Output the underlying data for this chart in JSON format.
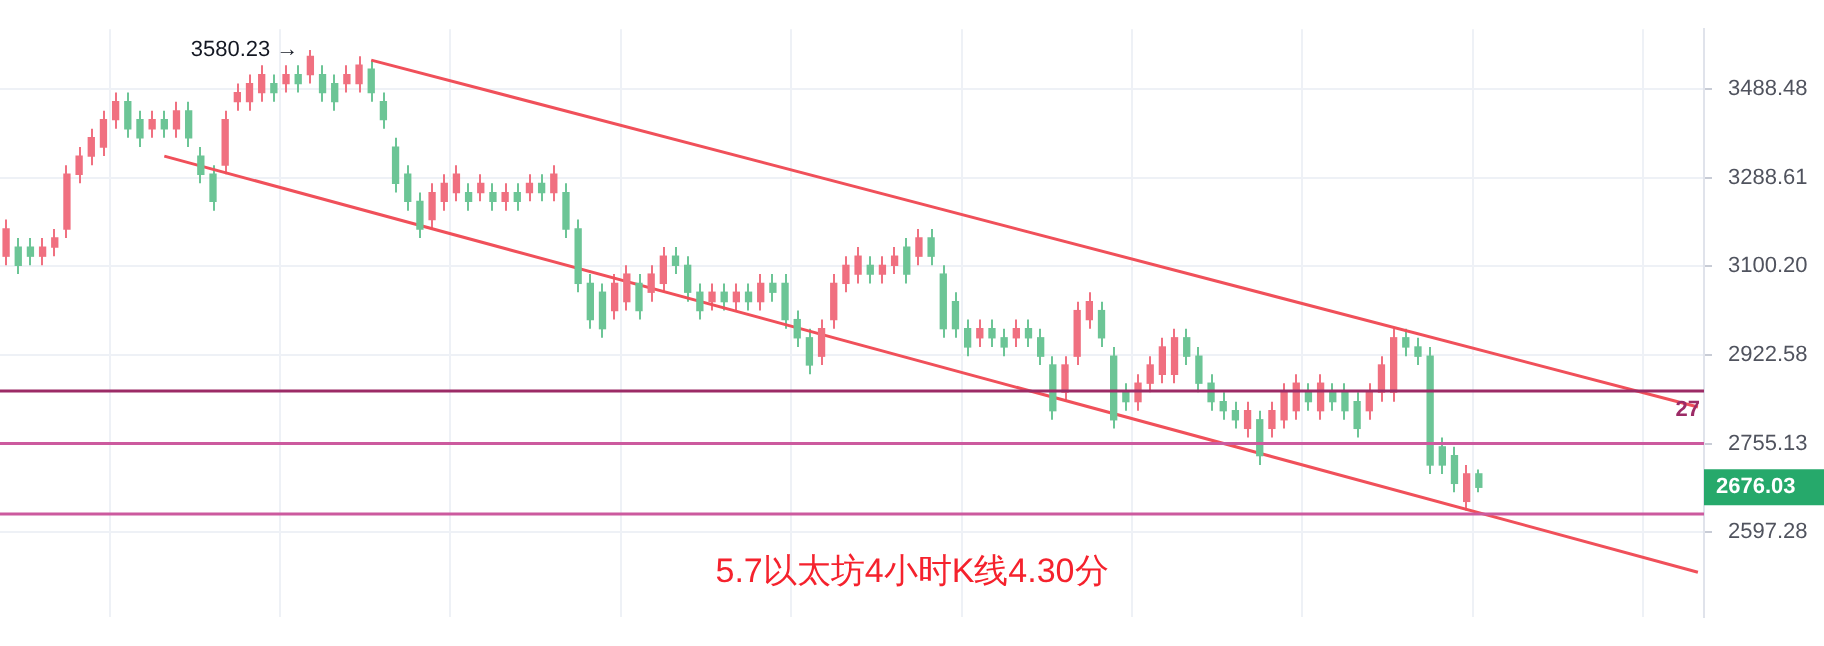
{
  "chart_data": {
    "type": "candlestick",
    "title": "5.7以太坊4小时K线4.30分",
    "categories": [
      null,
      null,
      null,
      null,
      null,
      null,
      null,
      null,
      null,
      null,
      null,
      null,
      null,
      null,
      null,
      null,
      null,
      null,
      null,
      null,
      null,
      null,
      null,
      null,
      null,
      null,
      null,
      null,
      null,
      null,
      null,
      null,
      null,
      null,
      null,
      null,
      null,
      null,
      null,
      null,
      null,
      null,
      null,
      null,
      null,
      null,
      null,
      null,
      null,
      null,
      null,
      null,
      null,
      null,
      null,
      null,
      null,
      null,
      null,
      null,
      null,
      null,
      null,
      null,
      null,
      null,
      null,
      null,
      null,
      null,
      null,
      null,
      null,
      null,
      null,
      null,
      null,
      null,
      null,
      null,
      null,
      null,
      null,
      null,
      null,
      null,
      null,
      null,
      null,
      null,
      null,
      null,
      null,
      null,
      null,
      null,
      null,
      null,
      null,
      null,
      null,
      null,
      null,
      null,
      null,
      null,
      null,
      null,
      null,
      null,
      null,
      null,
      null,
      null,
      null,
      null,
      null,
      null,
      null,
      null,
      null,
      null,
      null,
      null,
      null,
      null,
      null,
      null,
      null,
      null,
      null,
      null,
      null,
      null,
      null,
      null,
      null,
      null,
      null,
      null
    ],
    "ohlc": [
      [
        3121,
        3198,
        3102,
        3178
      ],
      [
        3140,
        3159,
        3084,
        3102
      ],
      [
        3140,
        3159,
        3102,
        3121
      ],
      [
        3121,
        3159,
        3102,
        3140
      ],
      [
        3140,
        3178,
        3121,
        3159
      ],
      [
        3178,
        3316,
        3159,
        3296
      ],
      [
        3296,
        3356,
        3276,
        3336
      ],
      [
        3336,
        3397,
        3316,
        3377
      ],
      [
        3356,
        3438,
        3336,
        3418
      ],
      [
        3418,
        3480,
        3397,
        3459
      ],
      [
        3459,
        3480,
        3377,
        3397
      ],
      [
        3418,
        3438,
        3356,
        3377
      ],
      [
        3397,
        3438,
        3377,
        3418
      ],
      [
        3418,
        3438,
        3377,
        3397
      ],
      [
        3397,
        3459,
        3377,
        3438
      ],
      [
        3438,
        3459,
        3356,
        3377
      ],
      [
        3336,
        3356,
        3276,
        3296
      ],
      [
        3296,
        3316,
        3217,
        3237
      ],
      [
        3316,
        3438,
        3296,
        3418
      ],
      [
        3459,
        3501,
        3438,
        3480
      ],
      [
        3459,
        3522,
        3438,
        3501
      ],
      [
        3480,
        3544,
        3459,
        3522
      ],
      [
        3501,
        3522,
        3459,
        3480
      ],
      [
        3501,
        3544,
        3480,
        3522
      ],
      [
        3522,
        3544,
        3480,
        3501
      ],
      [
        3522,
        3580.23,
        3501,
        3565
      ],
      [
        3522,
        3544,
        3459,
        3480
      ],
      [
        3501,
        3522,
        3438,
        3459
      ],
      [
        3501,
        3544,
        3480,
        3522
      ],
      [
        3501,
        3565,
        3480,
        3544
      ],
      [
        3535,
        3556,
        3459,
        3480
      ],
      [
        3459,
        3480,
        3397,
        3418
      ],
      [
        3356,
        3377,
        3256,
        3276
      ],
      [
        3296,
        3316,
        3217,
        3237
      ],
      [
        3237,
        3256,
        3159,
        3178
      ],
      [
        3198,
        3276,
        3178,
        3256
      ],
      [
        3237,
        3296,
        3217,
        3276
      ],
      [
        3256,
        3316,
        3237,
        3296
      ],
      [
        3256,
        3276,
        3217,
        3237
      ],
      [
        3256,
        3296,
        3237,
        3276
      ],
      [
        3256,
        3276,
        3217,
        3237
      ],
      [
        3237,
        3276,
        3217,
        3256
      ],
      [
        3256,
        3276,
        3217,
        3237
      ],
      [
        3256,
        3296,
        3237,
        3276
      ],
      [
        3276,
        3296,
        3237,
        3256
      ],
      [
        3256,
        3316,
        3237,
        3296
      ],
      [
        3256,
        3276,
        3159,
        3178
      ],
      [
        3178,
        3198,
        3047,
        3065
      ],
      [
        3065,
        3084,
        2974,
        2992
      ],
      [
        3047,
        3065,
        2956,
        2974
      ],
      [
        3010,
        3084,
        2992,
        3065
      ],
      [
        3028,
        3102,
        3010,
        3084
      ],
      [
        3065,
        3084,
        2992,
        3010
      ],
      [
        3047,
        3102,
        3028,
        3084
      ],
      [
        3065,
        3140,
        3047,
        3121
      ],
      [
        3121,
        3140,
        3084,
        3102
      ],
      [
        3102,
        3121,
        3028,
        3047
      ],
      [
        3047,
        3065,
        2992,
        3010
      ],
      [
        3028,
        3065,
        3010,
        3047
      ],
      [
        3047,
        3065,
        3010,
        3028
      ],
      [
        3028,
        3065,
        3010,
        3047
      ],
      [
        3047,
        3065,
        3010,
        3028
      ],
      [
        3028,
        3084,
        3010,
        3065
      ],
      [
        3065,
        3084,
        3028,
        3047
      ],
      [
        3065,
        3084,
        2974,
        2992
      ],
      [
        2992,
        3010,
        2938,
        2956
      ],
      [
        2956,
        2974,
        2885,
        2903
      ],
      [
        2920,
        2992,
        2903,
        2974
      ],
      [
        2992,
        3084,
        2974,
        3065
      ],
      [
        3065,
        3121,
        3047,
        3102
      ],
      [
        3084,
        3140,
        3065,
        3121
      ],
      [
        3102,
        3121,
        3065,
        3084
      ],
      [
        3084,
        3121,
        3065,
        3102
      ],
      [
        3102,
        3140,
        3084,
        3121
      ],
      [
        3140,
        3159,
        3065,
        3084
      ],
      [
        3121,
        3178,
        3102,
        3159
      ],
      [
        3159,
        3178,
        3102,
        3121
      ],
      [
        3084,
        3102,
        2956,
        2974
      ],
      [
        3028,
        3047,
        2956,
        2974
      ],
      [
        2974,
        2992,
        2920,
        2938
      ],
      [
        2956,
        2992,
        2938,
        2974
      ],
      [
        2974,
        2992,
        2938,
        2956
      ],
      [
        2956,
        2974,
        2920,
        2938
      ],
      [
        2956,
        2992,
        2938,
        2974
      ],
      [
        2974,
        2992,
        2938,
        2956
      ],
      [
        2956,
        2974,
        2903,
        2920
      ],
      [
        2903,
        2920,
        2799,
        2816
      ],
      [
        2851,
        2920,
        2833,
        2903
      ],
      [
        2920,
        3028,
        2903,
        3010
      ],
      [
        2992,
        3047,
        2974,
        3028
      ],
      [
        3010,
        3028,
        2938,
        2956
      ],
      [
        2920,
        2938,
        2783,
        2799
      ],
      [
        2851,
        2868,
        2816,
        2833
      ],
      [
        2833,
        2885,
        2816,
        2868
      ],
      [
        2868,
        2920,
        2851,
        2903
      ],
      [
        2885,
        2956,
        2868,
        2938
      ],
      [
        2885,
        2974,
        2868,
        2956
      ],
      [
        2956,
        2974,
        2903,
        2920
      ],
      [
        2920,
        2938,
        2851,
        2868
      ],
      [
        2868,
        2885,
        2816,
        2833
      ],
      [
        2833,
        2851,
        2799,
        2816
      ],
      [
        2816,
        2833,
        2783,
        2799
      ],
      [
        2783,
        2833,
        2766,
        2816
      ],
      [
        2799,
        2816,
        2716,
        2733
      ],
      [
        2783,
        2833,
        2766,
        2816
      ],
      [
        2799,
        2868,
        2783,
        2851
      ],
      [
        2816,
        2885,
        2799,
        2868
      ],
      [
        2851,
        2868,
        2816,
        2833
      ],
      [
        2816,
        2885,
        2799,
        2868
      ],
      [
        2851,
        2868,
        2816,
        2833
      ],
      [
        2851,
        2868,
        2799,
        2816
      ],
      [
        2833,
        2851,
        2766,
        2783
      ],
      [
        2816,
        2868,
        2799,
        2851
      ],
      [
        2851,
        2920,
        2833,
        2903
      ],
      [
        2851,
        2974,
        2833,
        2956
      ],
      [
        2956,
        2974,
        2920,
        2938
      ],
      [
        2938,
        2956,
        2903,
        2920
      ],
      [
        2920,
        2938,
        2700,
        2716
      ],
      [
        2749,
        2766,
        2700,
        2716
      ],
      [
        2733,
        2749,
        2667,
        2683
      ],
      [
        2651,
        2716,
        2635,
        2700
      ],
      [
        2700,
        2708,
        2667,
        2676.03
      ],
      null,
      null,
      null,
      null,
      null,
      null,
      null,
      null,
      null,
      null,
      null,
      null,
      null,
      null,
      null,
      null,
      null,
      null
    ],
    "series": [
      {
        "type": "line",
        "color": "#f0505a",
        "values": [
          null,
          null,
          null,
          null,
          null,
          null,
          null,
          null,
          null,
          null,
          null,
          null,
          null,
          null,
          null,
          null,
          null,
          null,
          null,
          null,
          null,
          null,
          null,
          null,
          null,
          null,
          null,
          null,
          null,
          null,
          3556,
          null,
          null,
          null,
          null,
          null,
          null,
          null,
          null,
          null,
          null,
          null,
          null,
          null,
          null,
          null,
          null,
          null,
          null,
          null,
          null,
          null,
          null,
          null,
          null,
          null,
          null,
          null,
          null,
          null,
          null,
          null,
          null,
          null,
          null,
          null,
          null,
          null,
          null,
          null,
          null,
          null,
          null,
          null,
          null,
          null,
          null,
          null,
          null,
          null,
          null,
          null,
          null,
          null,
          null,
          null,
          null,
          null,
          null,
          null,
          null,
          null,
          null,
          null,
          null,
          null,
          null,
          null,
          null,
          null,
          null,
          null,
          null,
          null,
          null,
          null,
          null,
          null,
          null,
          null,
          null,
          null,
          null,
          null,
          null,
          null,
          null,
          null,
          null,
          null,
          null,
          null,
          null,
          null,
          null,
          null,
          null,
          null,
          null,
          null,
          null,
          null,
          null,
          null,
          null,
          null,
          null,
          null,
          null,
          2823
        ]
      },
      {
        "type": "line",
        "color": "#f0505a",
        "values": [
          null,
          null,
          null,
          null,
          null,
          null,
          null,
          null,
          null,
          null,
          null,
          null,
          null,
          3336,
          null,
          null,
          null,
          null,
          null,
          null,
          null,
          null,
          null,
          null,
          null,
          null,
          null,
          null,
          null,
          null,
          null,
          null,
          null,
          null,
          null,
          null,
          null,
          null,
          null,
          null,
          null,
          null,
          null,
          null,
          null,
          null,
          null,
          null,
          null,
          null,
          null,
          null,
          null,
          null,
          null,
          null,
          null,
          null,
          null,
          null,
          null,
          null,
          null,
          null,
          null,
          null,
          null,
          null,
          null,
          null,
          null,
          null,
          null,
          null,
          null,
          null,
          null,
          null,
          null,
          null,
          null,
          null,
          null,
          null,
          null,
          null,
          null,
          null,
          null,
          null,
          null,
          null,
          null,
          null,
          null,
          null,
          null,
          null,
          null,
          null,
          null,
          null,
          null,
          null,
          null,
          null,
          null,
          null,
          null,
          null,
          null,
          null,
          null,
          null,
          null,
          null,
          null,
          null,
          null,
          null,
          null,
          null,
          null,
          null,
          null,
          null,
          null,
          null,
          null,
          null,
          null,
          null,
          null,
          null,
          null,
          null,
          null,
          null,
          null,
          2529
        ]
      }
    ],
    "ref_lines": [
      {
        "axis": "y",
        "value": 2853,
        "color": "#9c2b66"
      },
      {
        "axis": "y",
        "value": 2755,
        "color": "#cc5a9e"
      },
      {
        "axis": "y",
        "value": 2629,
        "color": "#cc5a9e"
      }
    ],
    "annotations": [
      "3580.23 →",
      "2676.03",
      "27"
    ],
    "log": true,
    "ylim": [
      2455,
      3630
    ],
    "yticks": [
      2597.28,
      2755.13,
      2922.58,
      {
        "value": 3100.2,
        "label": "3100.20"
      },
      3288.61,
      3488.48
    ],
    "grid": true,
    "tick_labels": "y"
  }
}
